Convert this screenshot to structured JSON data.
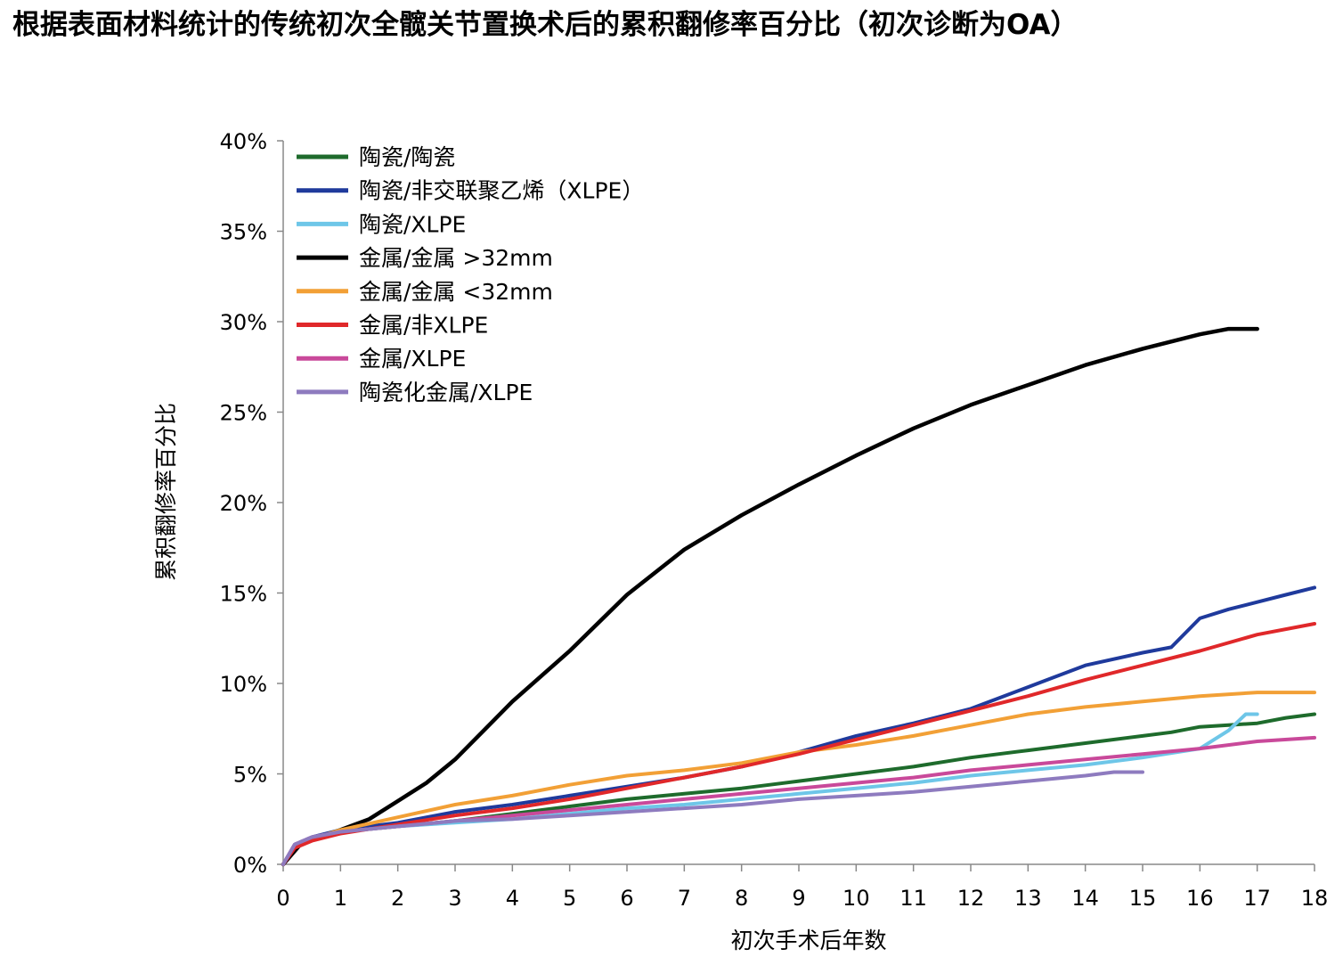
{
  "title": "根据表面材料统计的传统初次全髋关节置换术后的累积翻修率百分比（初次诊断为OA）",
  "chart_data": {
    "type": "line",
    "xlabel": "初次手术后年数",
    "ylabel": "累积翻修率百分比",
    "xlim": [
      0,
      18
    ],
    "ylim": [
      0,
      40
    ],
    "x_ticks": [
      "0",
      "1",
      "2",
      "3",
      "4",
      "5",
      "6",
      "7",
      "8",
      "9",
      "10",
      "11",
      "12",
      "13",
      "14",
      "15",
      "16",
      "17",
      "18"
    ],
    "y_ticks": [
      "0%",
      "5%",
      "10%",
      "15%",
      "20%",
      "25%",
      "30%",
      "35%",
      "40%"
    ],
    "legend_position": "top-left",
    "grid": false,
    "series": [
      {
        "name": "陶瓷/陶瓷",
        "color": "#1e6b2c",
        "x": [
          0,
          0.2,
          0.5,
          1,
          2,
          3,
          4,
          5,
          6,
          7,
          8,
          9,
          10,
          11,
          12,
          13,
          14,
          15,
          15.5,
          16,
          16.5,
          17,
          17.5,
          18
        ],
        "y": [
          0,
          1.0,
          1.4,
          1.8,
          2.1,
          2.4,
          2.8,
          3.2,
          3.6,
          3.9,
          4.2,
          4.6,
          5.0,
          5.4,
          5.9,
          6.3,
          6.7,
          7.1,
          7.3,
          7.6,
          7.7,
          7.8,
          8.1,
          8.3
        ]
      },
      {
        "name": "陶瓷/非交联聚乙烯（XLPE）",
        "color": "#1f3a9c",
        "x": [
          0,
          0.2,
          0.5,
          1,
          2,
          3,
          4,
          5,
          6,
          7,
          8,
          9,
          10,
          11,
          12,
          13,
          14,
          15,
          15.5,
          16,
          16.5,
          17,
          17.5,
          18
        ],
        "y": [
          0,
          1.1,
          1.5,
          1.9,
          2.3,
          2.9,
          3.3,
          3.8,
          4.3,
          4.8,
          5.4,
          6.2,
          7.1,
          7.8,
          8.6,
          9.8,
          11.0,
          11.7,
          12.0,
          13.6,
          14.1,
          14.5,
          14.9,
          15.3
        ]
      },
      {
        "name": "陶瓷/XLPE",
        "color": "#6ec6e8",
        "x": [
          0,
          0.2,
          0.5,
          1,
          2,
          3,
          4,
          5,
          6,
          7,
          8,
          9,
          10,
          11,
          12,
          13,
          14,
          15,
          16,
          16.5,
          16.8,
          17
        ],
        "y": [
          0,
          1.0,
          1.4,
          1.8,
          2.1,
          2.3,
          2.5,
          2.8,
          3.1,
          3.3,
          3.6,
          3.9,
          4.2,
          4.5,
          4.9,
          5.2,
          5.5,
          5.9,
          6.4,
          7.4,
          8.3,
          8.3
        ]
      },
      {
        "name": "金属/金属 >32mm",
        "color": "#000000",
        "x": [
          0,
          0.3,
          1,
          1.5,
          2,
          2.5,
          3,
          3.5,
          4,
          5,
          6,
          7,
          8,
          9,
          10,
          11,
          12,
          13,
          14,
          15,
          15.5,
          16,
          16.5,
          17
        ],
        "y": [
          0,
          1.1,
          1.9,
          2.5,
          3.5,
          4.5,
          5.8,
          7.4,
          9.0,
          11.8,
          14.9,
          17.4,
          19.3,
          21.0,
          22.6,
          24.1,
          25.4,
          26.5,
          27.6,
          28.5,
          28.9,
          29.3,
          29.6,
          29.6
        ]
      },
      {
        "name": "金属/金属 <32mm",
        "color": "#f2a036",
        "x": [
          0,
          0.2,
          0.5,
          1,
          2,
          3,
          4,
          5,
          6,
          7,
          8,
          9,
          10,
          11,
          12,
          13,
          14,
          15,
          16,
          17,
          18
        ],
        "y": [
          0,
          1.0,
          1.4,
          1.9,
          2.6,
          3.3,
          3.8,
          4.4,
          4.9,
          5.2,
          5.6,
          6.2,
          6.6,
          7.1,
          7.7,
          8.3,
          8.7,
          9.0,
          9.3,
          9.5,
          9.5
        ]
      },
      {
        "name": "金属/非XLPE",
        "color": "#e0282a",
        "x": [
          0,
          0.2,
          0.5,
          1,
          2,
          3,
          4,
          5,
          6,
          7,
          8,
          9,
          10,
          11,
          12,
          13,
          14,
          15,
          16,
          17,
          18
        ],
        "y": [
          0,
          0.9,
          1.3,
          1.7,
          2.2,
          2.7,
          3.1,
          3.6,
          4.2,
          4.8,
          5.4,
          6.1,
          6.9,
          7.7,
          8.5,
          9.3,
          10.2,
          11.0,
          11.8,
          12.7,
          13.3
        ]
      },
      {
        "name": "金属/XLPE",
        "color": "#c9499a",
        "x": [
          0,
          0.2,
          0.5,
          1,
          2,
          3,
          4,
          5,
          6,
          7,
          8,
          9,
          10,
          11,
          12,
          13,
          14,
          15,
          16,
          17,
          18
        ],
        "y": [
          0,
          1.1,
          1.5,
          1.8,
          2.1,
          2.4,
          2.7,
          3.0,
          3.3,
          3.6,
          3.9,
          4.2,
          4.5,
          4.8,
          5.2,
          5.5,
          5.8,
          6.1,
          6.4,
          6.8,
          7.0
        ]
      },
      {
        "name": "陶瓷化金属/XLPE",
        "color": "#8e7bbf",
        "x": [
          0,
          0.2,
          0.5,
          1,
          2,
          3,
          4,
          5,
          6,
          7,
          8,
          9,
          10,
          11,
          12,
          13,
          14,
          14.5,
          15
        ],
        "y": [
          0,
          1.1,
          1.5,
          1.8,
          2.1,
          2.4,
          2.5,
          2.7,
          2.9,
          3.1,
          3.3,
          3.6,
          3.8,
          4.0,
          4.3,
          4.6,
          4.9,
          5.1,
          5.1
        ]
      }
    ]
  }
}
